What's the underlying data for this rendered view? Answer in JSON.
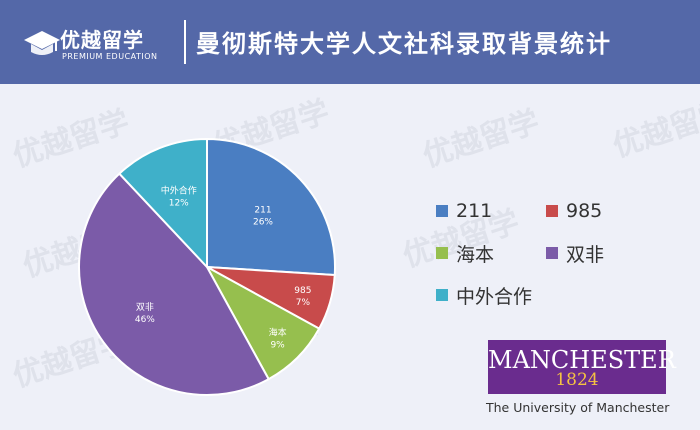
{
  "header": {
    "logo_cn": "优越留学",
    "logo_en": "PREMIUM EDUCATION",
    "title": "曼彻斯特大学人文社科录取背景统计"
  },
  "watermark_text": "优越留学",
  "colors": {
    "header_bg": "#5468a8",
    "page_bg": "#eef0f8",
    "brand_purple": "#6a2c8e",
    "brand_gold": "#f5c242"
  },
  "chart_data": {
    "type": "pie",
    "slices": [
      {
        "name": "211",
        "value": 26,
        "label": "211",
        "pct_label": "26%",
        "color": "#4a7ec2"
      },
      {
        "name": "985",
        "value": 7,
        "label": "985",
        "pct_label": "7%",
        "color": "#c84b4b"
      },
      {
        "name": "海本",
        "value": 9,
        "label": "海本",
        "pct_label": "9%",
        "color": "#96bf4e"
      },
      {
        "name": "双非",
        "value": 46,
        "label": "双非",
        "pct_label": "46%",
        "color": "#7b5ba8"
      },
      {
        "name": "中外合作",
        "value": 12,
        "label": "中外合作",
        "pct_label": "12%",
        "color": "#3fb0c9"
      }
    ],
    "start_angle_deg": 0,
    "direction": "clockwise",
    "legend_position": "right"
  },
  "legend": {
    "items": [
      {
        "label": "211",
        "color": "#4a7ec2"
      },
      {
        "label": "985",
        "color": "#c84b4b"
      },
      {
        "label": "海本",
        "color": "#96bf4e"
      },
      {
        "label": "双非",
        "color": "#7b5ba8"
      },
      {
        "label": "中外合作",
        "color": "#3fb0c9"
      }
    ]
  },
  "university": {
    "name": "MANCHESTER",
    "year": "1824",
    "subtitle": "The University of Manchester"
  }
}
